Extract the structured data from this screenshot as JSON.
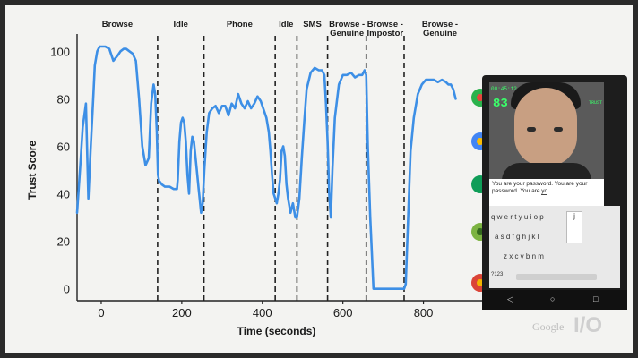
{
  "chart_data": {
    "type": "line",
    "xlabel": "Time (seconds)",
    "ylabel": "Trust Score",
    "xlim": [
      -60,
      930
    ],
    "ylim": [
      -5,
      105
    ],
    "x_ticks": [
      0,
      200,
      400,
      600,
      800
    ],
    "y_ticks": [
      0,
      20,
      40,
      60,
      80,
      100
    ],
    "color": "#3d8fe6",
    "segments": [
      {
        "label": "Browse",
        "start": -60,
        "end": 140
      },
      {
        "label": "Idle",
        "start": 140,
        "end": 255
      },
      {
        "label": "Phone",
        "start": 255,
        "end": 432
      },
      {
        "label": "Idle",
        "start": 432,
        "end": 486
      },
      {
        "label": "SMS",
        "start": 486,
        "end": 562
      },
      {
        "label": "Browse - Genuine",
        "start": 562,
        "end": 658
      },
      {
        "label": "Browse - Impostor",
        "start": 658,
        "end": 752
      },
      {
        "label": "Browse - Genuine",
        "start": 752,
        "end": 930
      }
    ],
    "series": [
      {
        "x": [
          -60,
          -52,
          -46,
          -38,
          -32,
          -26,
          -20,
          -16,
          -10,
          -4,
          2,
          10,
          20,
          30,
          40,
          48,
          56,
          62,
          70,
          78,
          86,
          94,
          102,
          110,
          118,
          124,
          130,
          134,
          138,
          141,
          144,
          146,
          150,
          158,
          170,
          180,
          188,
          190,
          194,
          198,
          202,
          206,
          210,
          214,
          218,
          222,
          226,
          230,
          236,
          242,
          248,
          252,
          256,
          262,
          268,
          276,
          284,
          292,
          300,
          308,
          316,
          324,
          332,
          340,
          348,
          356,
          364,
          372,
          380,
          388,
          396,
          404,
          410,
          416,
          420,
          424,
          428,
          432,
          436,
          440,
          444,
          448,
          452,
          456,
          460,
          464,
          470,
          476,
          482,
          486,
          492,
          498,
          504,
          510,
          520,
          530,
          540,
          548,
          554,
          558,
          562,
          566,
          570,
          574,
          580,
          590,
          600,
          610,
          620,
          630,
          640,
          648,
          654,
          658,
          662,
          668,
          676,
          690,
          710,
          730,
          748,
          752,
          756,
          762,
          768,
          776,
          786,
          796,
          806,
          816,
          826,
          836,
          846,
          856,
          862,
          868,
          874,
          880
        ],
        "y": [
          32,
          52,
          68,
          78,
          38,
          60,
          80,
          94,
          100,
          102,
          102,
          102,
          101,
          96,
          98,
          100,
          101,
          101,
          100,
          99,
          96,
          80,
          60,
          52,
          55,
          78,
          86,
          82,
          66,
          48,
          45,
          45,
          44,
          43,
          43,
          42,
          42,
          46,
          62,
          70,
          72,
          70,
          62,
          48,
          40,
          58,
          64,
          62,
          52,
          42,
          32,
          36,
          50,
          66,
          74,
          76,
          77,
          74,
          77,
          77,
          73,
          78,
          76,
          82,
          78,
          76,
          79,
          76,
          78,
          81,
          79,
          75,
          72,
          66,
          58,
          48,
          40,
          38,
          36,
          40,
          46,
          58,
          60,
          56,
          44,
          38,
          32,
          36,
          30,
          30,
          38,
          55,
          70,
          84,
          91,
          93,
          92,
          92,
          90,
          78,
          62,
          40,
          30,
          50,
          72,
          86,
          90,
          90,
          91,
          89,
          90,
          90,
          92,
          90,
          60,
          30,
          0,
          0,
          0,
          0,
          0,
          0,
          2,
          30,
          58,
          72,
          82,
          86,
          88,
          88,
          88,
          87,
          88,
          87,
          86,
          86,
          84,
          80
        ]
      }
    ]
  },
  "phone": {
    "hud_left": "00:45:12",
    "hud_score": "83",
    "hud_right": "TRUST",
    "message_line1": "You are your password.  You are your",
    "message_line2": "password.  You are ",
    "message_last": "yo",
    "kb_row1": "q w e r t y u i o p",
    "kb_row2": "a s d f g h j k l",
    "kb_row3": "z x c v b n m",
    "kb_sym": "?123",
    "kb_panel": "j",
    "nav_back": "◁",
    "nav_home": "○",
    "nav_recent": "□"
  },
  "branding": {
    "google": "Google",
    "io": "I/O"
  }
}
